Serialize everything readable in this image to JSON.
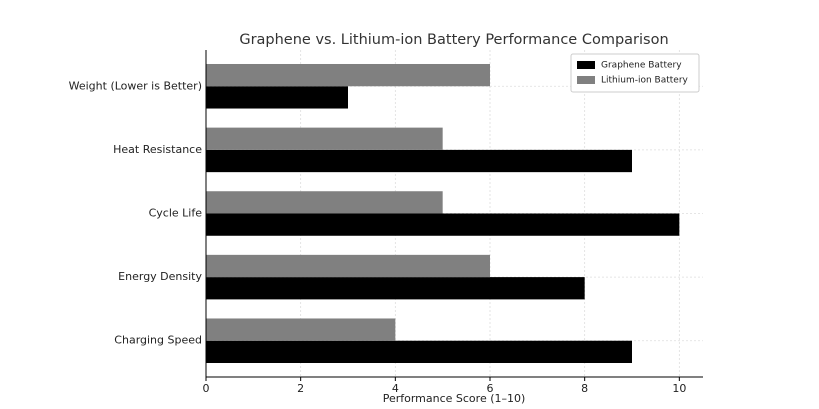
{
  "chart_data": {
    "type": "hbar",
    "title": "Graphene vs. Lithium-ion Battery Performance Comparison",
    "x_label": "Performance Score (1–10)",
    "categories": [
      "Charging Speed",
      "Energy Density",
      "Cycle Life",
      "Heat Resistance",
      "Weight (Lower is Better)"
    ],
    "series": [
      {
        "name": "Graphene Battery",
        "color": "#000000",
        "values": [
          9,
          8,
          10,
          9,
          3
        ]
      },
      {
        "name": "Lithium-ion Battery",
        "color": "#808080",
        "values": [
          4,
          6,
          5,
          5,
          6
        ]
      }
    ],
    "xlim": [
      0,
      10.5
    ],
    "xticks": [
      0,
      2,
      4,
      6,
      8,
      10
    ],
    "grid": true,
    "legend": "upper right"
  }
}
